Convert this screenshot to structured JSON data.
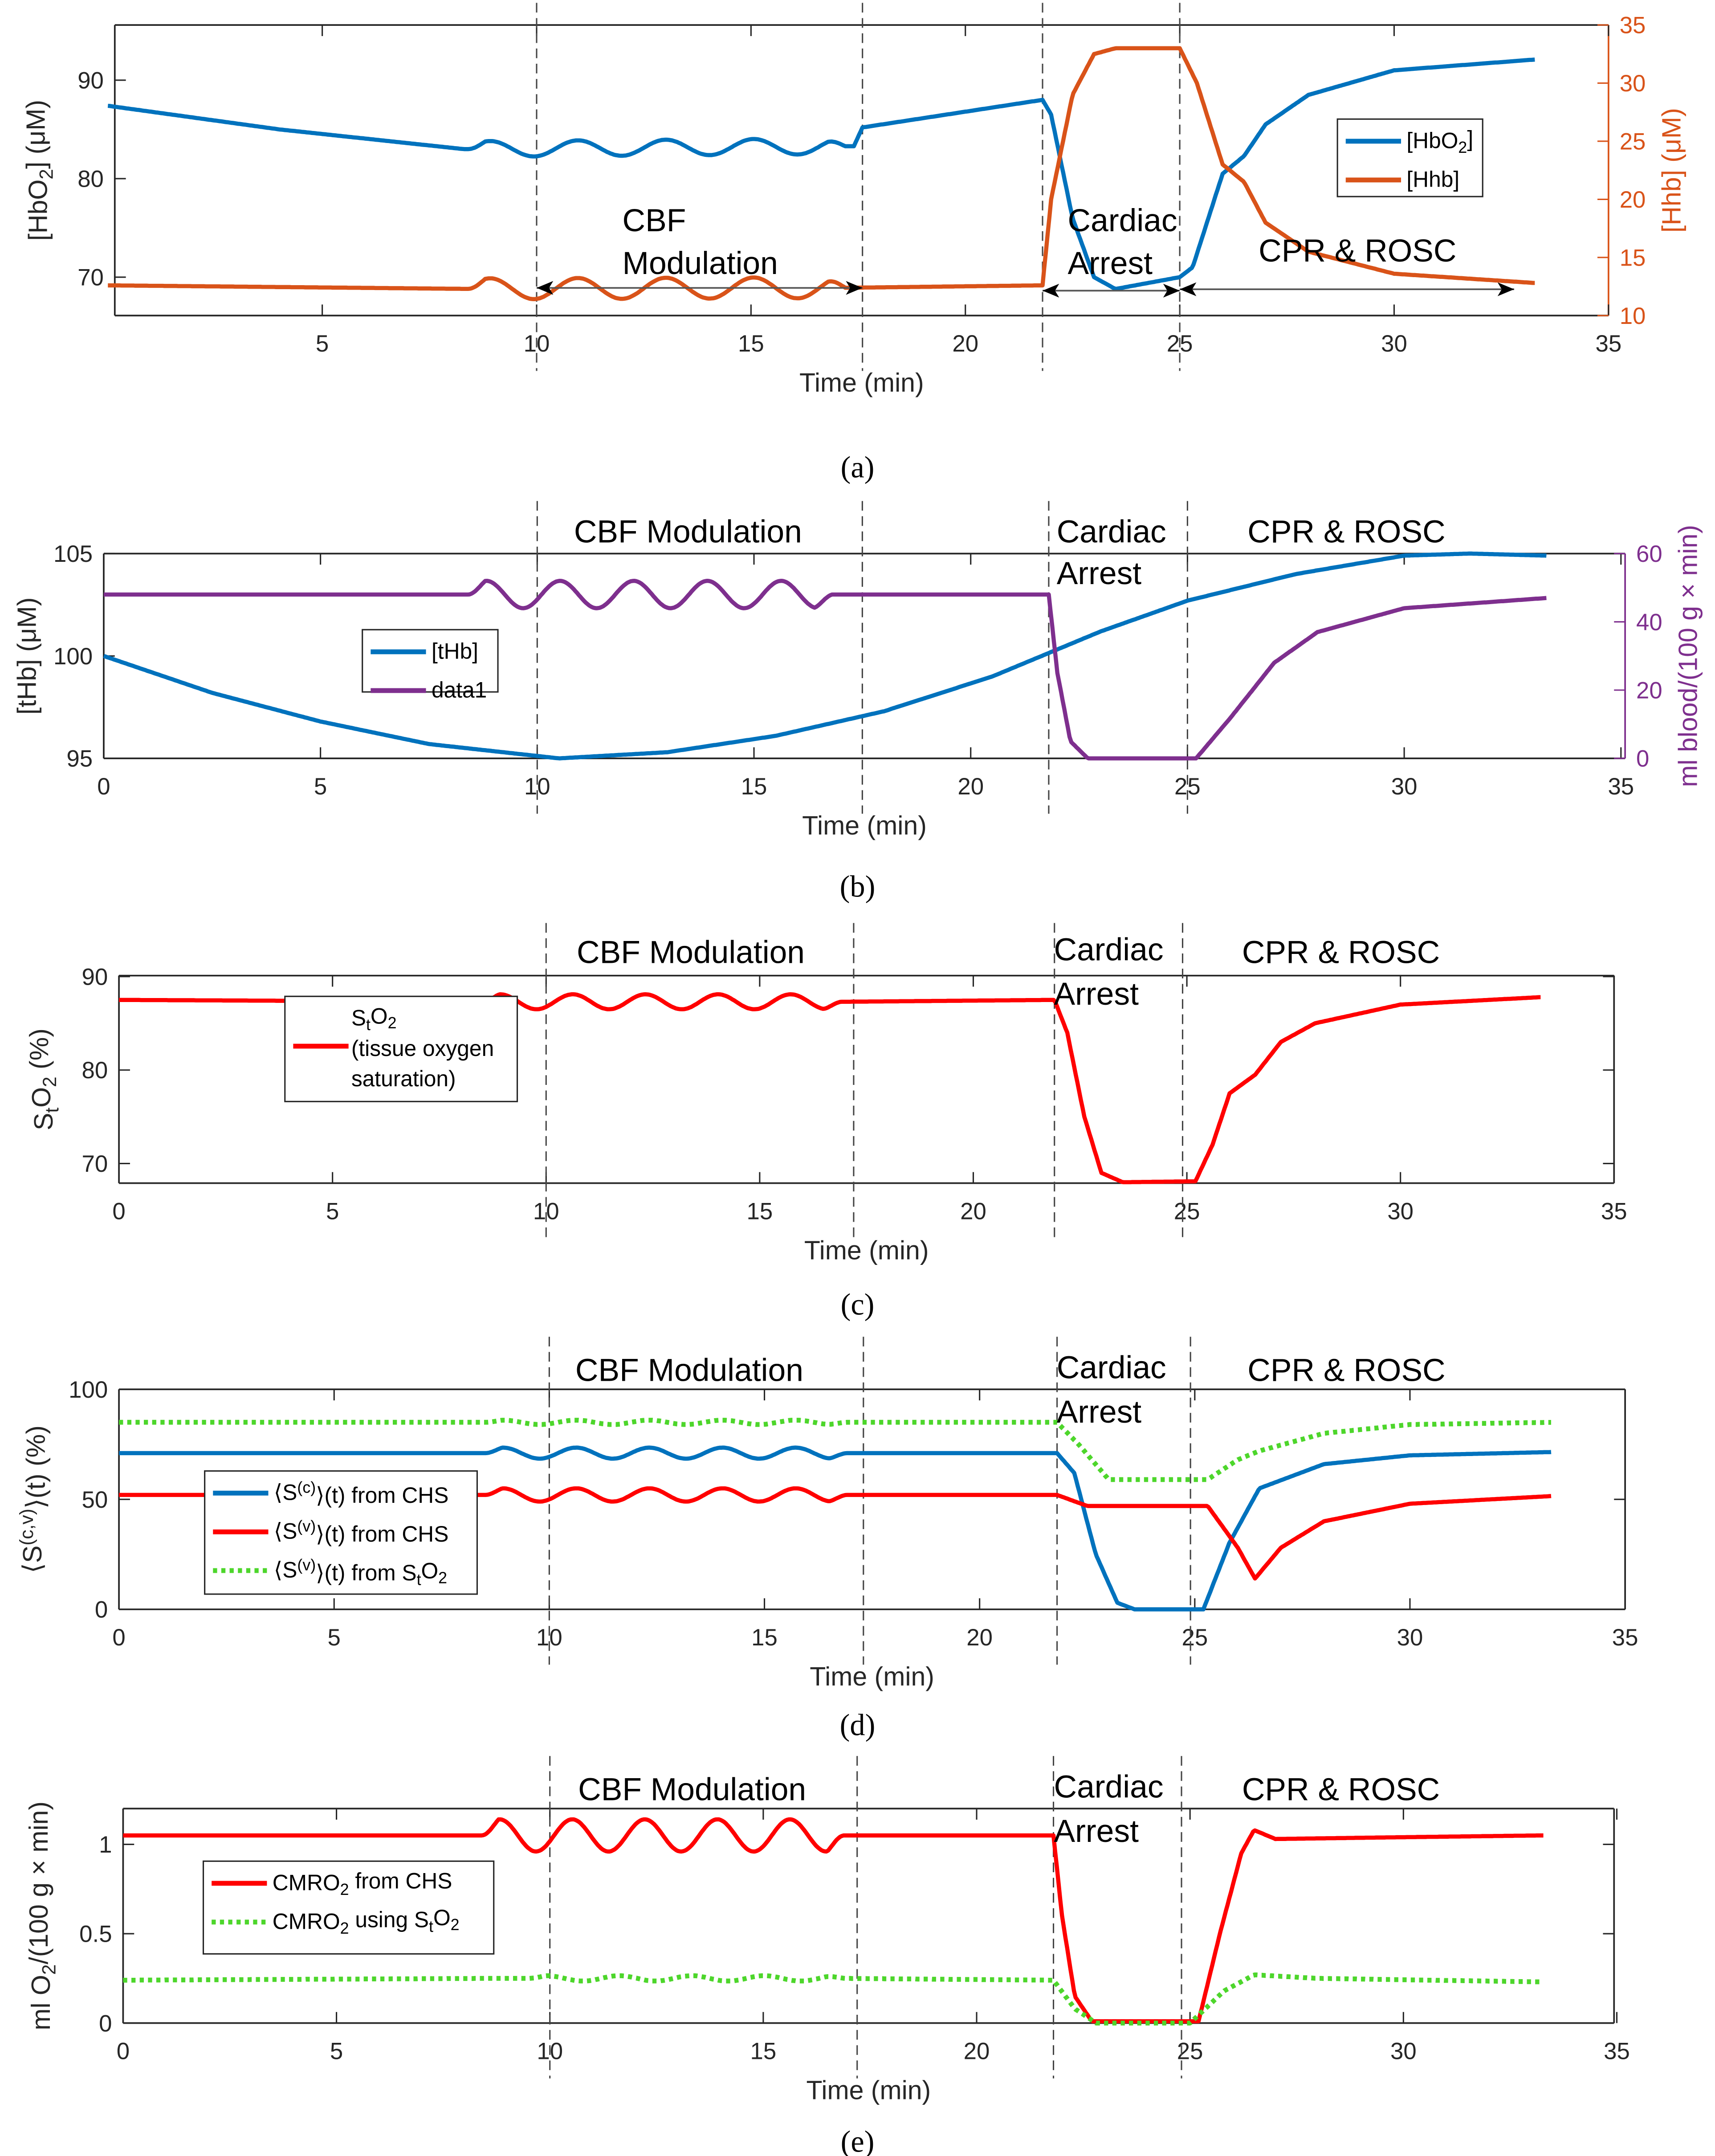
{
  "chart_data": [
    {
      "id": "a",
      "type": "line",
      "caption": "(a)",
      "xlabel": "Time (min)",
      "xlim": [
        0,
        35
      ],
      "xticks": [
        5,
        10,
        15,
        20,
        25,
        30,
        35
      ],
      "ylabel": "[HbO_{2}] (μM)",
      "ylim": [
        66.1,
        95.6
      ],
      "yticks": [
        70,
        80,
        90
      ],
      "ylabel_right": "[Hhb] (μM)",
      "ylim_right": [
        10,
        35
      ],
      "yticks_right": [
        10,
        15,
        20,
        25,
        30,
        35
      ],
      "right_color": "#D95319",
      "vlines": [
        10,
        17.6,
        21.8,
        25
      ],
      "annotations": [
        "CBF",
        "Modulation",
        "Cardiac",
        "Arrest",
        "CPR & ROSC"
      ],
      "series": [
        {
          "name": "[HbO_{2}]",
          "axis": "left",
          "color": "#0072BD",
          "style": "solid",
          "points": [
            [
              0,
              87.4
            ],
            [
              4,
              85
            ],
            [
              8.3,
              83
            ],
            [
              17.4,
              83.3
            ],
            [
              17.6,
              85.2
            ],
            [
              21.8,
              88
            ],
            [
              22,
              86.5
            ],
            [
              22.5,
              76
            ],
            [
              23,
              70
            ],
            [
              23.5,
              68.8
            ],
            [
              25,
              70
            ],
            [
              25.3,
              71
            ],
            [
              26,
              80.5
            ],
            [
              26.5,
              82.3
            ],
            [
              27,
              85.5
            ],
            [
              28,
              88.5
            ],
            [
              30,
              91
            ],
            [
              33.3,
              92.1
            ]
          ],
          "osc": {
            "from": 8.4,
            "to": 17.2,
            "period": 2.05,
            "amp": 0.8,
            "trend": 0.25
          }
        },
        {
          "name": "[Hhb]",
          "axis": "right",
          "color": "#D95319",
          "style": "solid",
          "points": [
            [
              0,
              12.6
            ],
            [
              8.3,
              12.3
            ],
            [
              17.4,
              12.4
            ],
            [
              21.8,
              12.6
            ],
            [
              22,
              20
            ],
            [
              22.5,
              29
            ],
            [
              23,
              32.5
            ],
            [
              23.5,
              33
            ],
            [
              25,
              33
            ],
            [
              25.4,
              30
            ],
            [
              26,
              23
            ],
            [
              26.5,
              21.5
            ],
            [
              27,
              18
            ],
            [
              28,
              15.5
            ],
            [
              30,
              13.6
            ],
            [
              33.3,
              12.8
            ]
          ],
          "osc": {
            "from": 8.4,
            "to": 17.2,
            "period": 2.05,
            "amp": 0.9,
            "trend": 0
          }
        }
      ]
    },
    {
      "id": "b",
      "type": "line",
      "caption": "(b)",
      "xlabel": "Time (min)",
      "xlim": [
        0,
        35
      ],
      "xticks": [
        0,
        5,
        10,
        15,
        20,
        25,
        30,
        35
      ],
      "ylabel": "[tHb] (μM)",
      "ylim": [
        95,
        105
      ],
      "yticks": [
        95,
        100,
        105
      ],
      "ylabel_right": "ml blood/(100 g × min)",
      "ylim_right": [
        0,
        60
      ],
      "yticks_right": [
        0,
        20,
        40,
        60
      ],
      "right_color": "#7E2F8E",
      "vlines": [
        10,
        17.5,
        21.8,
        25
      ],
      "annotations": [
        "CBF Modulation",
        "Cardiac",
        "Arrest",
        "CPR & ROSC"
      ],
      "series": [
        {
          "name": "[tHb]",
          "axis": "left",
          "color": "#0072BD",
          "style": "solid",
          "points": [
            [
              0,
              100
            ],
            [
              2.5,
              98.2
            ],
            [
              5,
              96.8
            ],
            [
              7.5,
              95.7
            ],
            [
              10.5,
              95
            ],
            [
              13,
              95.3
            ],
            [
              15.5,
              96.1
            ],
            [
              18,
              97.3
            ],
            [
              20.5,
              99
            ],
            [
              23,
              101.2
            ],
            [
              25,
              102.7
            ],
            [
              27.5,
              104
            ],
            [
              30,
              104.9
            ],
            [
              31.5,
              105
            ],
            [
              33.3,
              104.9
            ]
          ]
        },
        {
          "name": "data1",
          "axis": "right",
          "color": "#7E2F8E",
          "style": "solid",
          "points": [
            [
              0,
              48
            ],
            [
              8.3,
              48
            ],
            [
              16.8,
              48
            ],
            [
              21.8,
              48
            ],
            [
              22,
              25
            ],
            [
              22.3,
              5
            ],
            [
              22.7,
              0
            ],
            [
              25.2,
              0
            ],
            [
              26,
              12
            ],
            [
              27,
              28
            ],
            [
              28,
              37
            ],
            [
              30,
              44
            ],
            [
              33.3,
              47
            ]
          ],
          "osc": {
            "from": 8.4,
            "to": 16.8,
            "period": 1.7,
            "amp": 4,
            "trend": 0
          }
        }
      ]
    },
    {
      "id": "c",
      "type": "line",
      "caption": "(c)",
      "xlabel": "Time (min)",
      "xlim": [
        0,
        35
      ],
      "xticks": [
        0,
        5,
        10,
        15,
        20,
        25,
        30,
        35
      ],
      "ylabel": "S_{t}O_{2} (%)",
      "ylim": [
        67.9,
        90.1
      ],
      "yticks": [
        70,
        80,
        90
      ],
      "vlines": [
        10,
        17.2,
        21.9,
        24.9
      ],
      "annotations": [
        "CBF Modulation",
        "Cardiac",
        "Arrest",
        "CPR & ROSC"
      ],
      "series": [
        {
          "name": "S_{t}O_{2}|(tissue oxygen|saturation)",
          "axis": "left",
          "color": "#FF0000",
          "style": "solid",
          "points": [
            [
              0,
              87.5
            ],
            [
              8.5,
              87.3
            ],
            [
              16.9,
              87.3
            ],
            [
              21.9,
              87.5
            ],
            [
              22.2,
              84
            ],
            [
              22.6,
              75
            ],
            [
              23,
              69
            ],
            [
              23.5,
              68
            ],
            [
              25.2,
              68.1
            ],
            [
              25.6,
              72
            ],
            [
              26,
              77.5
            ],
            [
              26.6,
              79.5
            ],
            [
              27.2,
              83
            ],
            [
              28,
              85
            ],
            [
              30,
              87
            ],
            [
              33.3,
              87.8
            ]
          ],
          "osc": {
            "from": 8.5,
            "to": 16.9,
            "period": 1.7,
            "amp": 0.8,
            "trend": 0
          }
        }
      ]
    },
    {
      "id": "d",
      "type": "line",
      "caption": "(d)",
      "xlabel": "Time (min)",
      "xlim": [
        0,
        35
      ],
      "xticks": [
        0,
        5,
        10,
        15,
        20,
        25,
        30,
        35
      ],
      "ylabel": "⟨S^{(c,v)}⟩(t) (%)",
      "ylim": [
        0,
        100
      ],
      "yticks": [
        0,
        50,
        100
      ],
      "vlines": [
        10,
        17.3,
        21.8,
        24.9
      ],
      "annotations": [
        "CBF Modulation",
        "Cardiac",
        "Arrest",
        "CPR & ROSC"
      ],
      "series": [
        {
          "name": "⟨S^{(c)}⟩(t) from CHS",
          "axis": "left",
          "color": "#0072BD",
          "style": "solid",
          "points": [
            [
              0,
              71
            ],
            [
              8.5,
              71
            ],
            [
              16.9,
              71
            ],
            [
              21.8,
              71
            ],
            [
              22.2,
              62
            ],
            [
              22.7,
              25
            ],
            [
              23.2,
              3
            ],
            [
              23.6,
              0
            ],
            [
              25.2,
              0
            ],
            [
              25.8,
              30
            ],
            [
              26.5,
              55
            ],
            [
              28,
              66
            ],
            [
              30,
              70
            ],
            [
              33.3,
              71.5
            ]
          ],
          "osc": {
            "from": 8.5,
            "to": 16.9,
            "period": 1.7,
            "amp": 2.5,
            "trend": 0
          }
        },
        {
          "name": "⟨S^{(v)}⟩(t) from CHS",
          "axis": "left",
          "color": "#FF0000",
          "style": "solid",
          "points": [
            [
              0,
              52
            ],
            [
              8.5,
              52
            ],
            [
              16.9,
              52
            ],
            [
              21.8,
              52
            ],
            [
              22.5,
              47
            ],
            [
              25.3,
              47
            ],
            [
              26,
              28
            ],
            [
              26.4,
              14
            ],
            [
              27,
              28
            ],
            [
              28,
              40
            ],
            [
              30,
              48
            ],
            [
              33.3,
              51.5
            ]
          ],
          "osc": {
            "from": 8.5,
            "to": 16.9,
            "period": 1.7,
            "amp": 3,
            "trend": 0
          }
        },
        {
          "name": "⟨S^{(v)}⟩(t) from S_{t}O_{2}",
          "axis": "left",
          "color": "#4DD62B",
          "style": "dotted",
          "points": [
            [
              0,
              85
            ],
            [
              8.5,
              85
            ],
            [
              16.9,
              85
            ],
            [
              21.8,
              85
            ],
            [
              22.3,
              75
            ],
            [
              23,
              59
            ],
            [
              25.3,
              59
            ],
            [
              26,
              68
            ],
            [
              26.5,
              72
            ],
            [
              28,
              80
            ],
            [
              30,
              84
            ],
            [
              33.3,
              85
            ]
          ],
          "osc": {
            "from": 8.5,
            "to": 16.9,
            "period": 1.7,
            "amp": 1,
            "trend": 0
          }
        }
      ]
    },
    {
      "id": "e",
      "type": "line",
      "caption": "(e)",
      "xlabel": "Time (min)",
      "xlim": [
        0,
        35
      ],
      "xticks": [
        0,
        5,
        10,
        15,
        20,
        25,
        30,
        35
      ],
      "ylabel": "ml O_{2}/(100 g × min)",
      "ylim": [
        0,
        1.2
      ],
      "yticks": [
        0,
        0.5,
        1
      ],
      "ytick_labels": [
        "0",
        "0.5",
        "1"
      ],
      "vlines": [
        10,
        17.2,
        21.8,
        24.8
      ],
      "annotations": [
        "CBF Modulation",
        "Cardiac",
        "Arrest",
        "CPR & ROSC"
      ],
      "series": [
        {
          "name": "CMRO_{2} from CHS",
          "axis": "left",
          "color": "#FF0000",
          "style": "solid",
          "points": [
            [
              0,
              1.05
            ],
            [
              8.4,
              1.05
            ],
            [
              16.9,
              1.05
            ],
            [
              21.8,
              1.05
            ],
            [
              22,
              0.6
            ],
            [
              22.3,
              0.15
            ],
            [
              22.7,
              0.01
            ],
            [
              25.2,
              0.01
            ],
            [
              25.7,
              0.5
            ],
            [
              26.2,
              0.95
            ],
            [
              26.5,
              1.08
            ],
            [
              27,
              1.03
            ],
            [
              30,
              1.04
            ],
            [
              33.3,
              1.05
            ]
          ],
          "osc": {
            "from": 8.4,
            "to": 16.9,
            "period": 1.7,
            "amp": 0.09,
            "trend": 0
          }
        },
        {
          "name": "CMRO_{2} using S_{t}O_{2}",
          "axis": "left",
          "color": "#4DD62B",
          "style": "dotted",
          "points": [
            [
              0,
              0.24
            ],
            [
              8.5,
              0.25
            ],
            [
              16.9,
              0.25
            ],
            [
              21.8,
              0.24
            ],
            [
              22.3,
              0.08
            ],
            [
              22.8,
              0
            ],
            [
              25,
              0
            ],
            [
              25.8,
              0.18
            ],
            [
              26.5,
              0.27
            ],
            [
              28,
              0.25
            ],
            [
              33.3,
              0.23
            ]
          ],
          "osc": {
            "from": 9.5,
            "to": 16.9,
            "period": 1.7,
            "amp": 0.015,
            "trend": 0
          }
        }
      ]
    }
  ]
}
